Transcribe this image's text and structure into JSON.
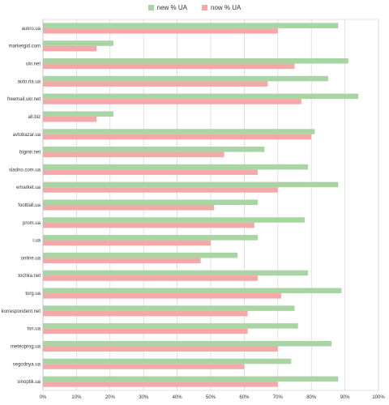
{
  "chart_data": {
    "type": "bar",
    "orientation": "horizontal",
    "categories": [
      "aukro.ua",
      "marketgid.com",
      "ukr.net",
      "auto.ria.ua",
      "freemail.ukr.net",
      "all.biz",
      "avtobazar.ua",
      "bigmir.net",
      "sladno.com.ua",
      "emarket.ua",
      "football.ua",
      "prom.ua",
      "i.ua",
      "online.ua",
      "tochka.net",
      "torg.ua",
      "korrespondent.net",
      "tsn.ua",
      "meteoprog.ua",
      "segodnya.ua",
      "sinoptik.ua"
    ],
    "series": [
      {
        "name": "new % UA",
        "color": "#a9d4a4",
        "values": [
          88,
          21,
          91,
          85,
          94,
          21,
          81,
          66,
          79,
          88,
          64,
          78,
          64,
          58,
          79,
          89,
          75,
          76,
          86,
          74,
          88
        ]
      },
      {
        "name": "now % UA",
        "color": "#f4a9a9",
        "values": [
          70,
          16,
          75,
          67,
          77,
          16,
          80,
          54,
          64,
          70,
          51,
          63,
          50,
          47,
          64,
          71,
          61,
          61,
          70,
          60,
          70
        ]
      }
    ],
    "xlim": [
      0,
      100
    ],
    "xticks": [
      "0%",
      "10%",
      "20%",
      "30%",
      "40%",
      "50%",
      "60%",
      "70%",
      "80%",
      "90%",
      "100%"
    ],
    "grid": true,
    "legend_position": "top"
  }
}
